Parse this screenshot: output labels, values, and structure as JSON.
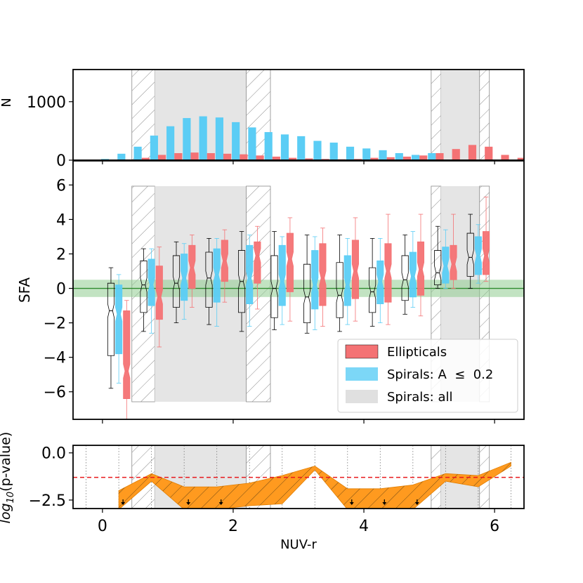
{
  "chart_data": [
    {
      "panel": "top",
      "type": "bar",
      "ylabel": "N",
      "ylim": [
        0,
        1550
      ],
      "yticks": [
        {
          "v": 0,
          "label": "0"
        },
        {
          "v": 1000,
          "label": "1000"
        }
      ],
      "bar_width": 0.12,
      "series": [
        {
          "name": "Spirals",
          "color": "#5bcdf5",
          "offset": -0.06,
          "x": [
            0.1,
            0.35,
            0.6,
            0.85,
            1.1,
            1.35,
            1.6,
            1.85,
            2.1,
            2.35,
            2.6,
            2.85,
            3.1,
            3.35,
            3.6,
            3.85,
            4.1,
            4.35,
            4.6,
            4.85,
            5.1
          ],
          "values": [
            20,
            110,
            230,
            420,
            580,
            720,
            750,
            730,
            650,
            560,
            480,
            440,
            410,
            330,
            300,
            230,
            200,
            170,
            120,
            90,
            120
          ]
        },
        {
          "name": "Ellipticals",
          "color": "#f47274",
          "offset": 0.06,
          "x": [
            0.35,
            0.6,
            0.85,
            1.1,
            1.35,
            1.6,
            1.85,
            2.1,
            2.35,
            2.6,
            2.85,
            3.1,
            3.35,
            3.6,
            3.85,
            4.1,
            4.35,
            4.6,
            4.85,
            5.1,
            5.35,
            5.6,
            5.85,
            6.1,
            6.35
          ],
          "values": [
            10,
            40,
            90,
            120,
            130,
            120,
            110,
            100,
            80,
            60,
            40,
            30,
            20,
            15,
            20,
            40,
            50,
            60,
            80,
            120,
            190,
            260,
            230,
            90,
            40
          ]
        }
      ]
    },
    {
      "panel": "middle",
      "type": "box",
      "ylabel": "SFA",
      "ylim": [
        -7.6,
        7.4
      ],
      "yticks": [
        {
          "v": 6,
          "label": "6"
        },
        {
          "v": 4,
          "label": "4"
        },
        {
          "v": 2,
          "label": "2"
        },
        {
          "v": 0,
          "label": "0"
        },
        {
          "v": -2,
          "label": "−2"
        },
        {
          "v": -4,
          "label": "−4"
        },
        {
          "v": -6,
          "label": "−6"
        }
      ],
      "zero_band": [
        -0.5,
        0.5
      ],
      "x": [
        0.25,
        0.75,
        1.25,
        1.75,
        2.25,
        2.75,
        3.25,
        3.75,
        4.25,
        4.75,
        5.25,
        5.75
      ],
      "series": [
        {
          "name": "Spirals: all",
          "color": "#ffffff",
          "stroke": "#000000",
          "offset": -0.12,
          "q1": [
            -3.9,
            -1.4,
            -1.1,
            -1.1,
            -1.4,
            -1.7,
            -2.0,
            -1.7,
            -1.4,
            -0.7,
            0.2,
            0.7
          ],
          "med": [
            -1.3,
            0.2,
            0.3,
            0.6,
            0.4,
            0.0,
            -0.5,
            -0.4,
            -0.2,
            0.5,
            0.9,
            1.8
          ],
          "q3": [
            0.3,
            1.6,
            1.9,
            2.1,
            2.2,
            1.9,
            1.4,
            1.5,
            1.2,
            1.9,
            2.2,
            3.2
          ],
          "lo": [
            -5.8,
            -2.5,
            -2.0,
            -2.1,
            -2.5,
            -2.4,
            -2.6,
            -2.5,
            -2.2,
            -1.5,
            0.0,
            0.0
          ],
          "hi": [
            1.2,
            2.3,
            2.7,
            2.9,
            3.3,
            3.3,
            3.1,
            3.1,
            2.9,
            3.1,
            3.6,
            4.3
          ]
        },
        {
          "name": "Spirals: A ≤ 0.2",
          "color": "#5bcdf5",
          "stroke": "#5bcdf5",
          "offset": 0.0,
          "q1": [
            -3.8,
            -1.0,
            -0.7,
            -0.8,
            -0.9,
            -1.0,
            -1.2,
            -1.0,
            -0.9,
            -0.5,
            0.3,
            0.8
          ],
          "med": [
            -1.5,
            0.2,
            0.6,
            0.8,
            0.6,
            0.4,
            0.2,
            0.2,
            0.4,
            0.7,
            1.3,
            1.9
          ],
          "q3": [
            0.2,
            1.7,
            2.0,
            2.3,
            2.5,
            2.5,
            2.2,
            1.9,
            1.6,
            2.1,
            2.4,
            3.0
          ],
          "lo": [
            -5.5,
            -2.6,
            -1.8,
            -2.2,
            -2.2,
            -2.1,
            -2.4,
            -2.1,
            -2.0,
            -1.1,
            0.0,
            0.3
          ],
          "hi": [
            0.8,
            2.3,
            2.6,
            2.9,
            3.1,
            3.0,
            3.0,
            2.9,
            2.9,
            3.3,
            3.4,
            3.7
          ]
        },
        {
          "name": "Ellipticals",
          "color": "#f47274",
          "stroke": "#f47274",
          "offset": 0.12,
          "q1": [
            -6.4,
            -1.8,
            0.0,
            0.4,
            0.3,
            -0.2,
            -1.0,
            -0.6,
            -0.8,
            -0.4,
            0.5,
            0.8
          ],
          "med": [
            -4.8,
            -0.5,
            1.2,
            1.6,
            1.9,
            1.7,
            0.6,
            1.0,
            1.0,
            1.1,
            1.4,
            1.9
          ],
          "q3": [
            -1.3,
            1.3,
            2.5,
            2.8,
            2.7,
            3.2,
            2.6,
            2.8,
            2.6,
            2.7,
            2.5,
            3.3
          ],
          "lo": [
            -7.6,
            -3.4,
            -1.1,
            -0.8,
            -1.2,
            -1.9,
            -2.2,
            -1.9,
            -2.1,
            -1.6,
            0.0,
            0.4
          ],
          "hi": [
            -0.7,
            2.4,
            3.1,
            3.4,
            3.6,
            4.1,
            3.5,
            4.1,
            4.3,
            4.3,
            4.3,
            5.3
          ]
        }
      ],
      "legend": [
        {
          "label": "Ellipticals",
          "color": "#f47274"
        },
        {
          "label": "Spirals: A  ≤  0.2",
          "color": "#5bcdf5"
        },
        {
          "label": "Spirals: all",
          "color": "#e0e0e0"
        }
      ]
    },
    {
      "panel": "bottom",
      "type": "area",
      "ylabel_prefix": "log",
      "ylabel_sub": "10",
      "ylabel_suffix": "(p-value)",
      "ylim": [
        -2.95,
        0.4
      ],
      "yticks": [
        {
          "v": 0,
          "label": "0.0"
        },
        {
          "v": -2.5,
          "label": "−2.5"
        }
      ],
      "significance": -1.3,
      "dotted_x": [
        -0.25,
        0.25,
        0.75,
        1.25,
        1.75,
        2.25,
        2.75,
        3.25,
        3.75,
        4.25,
        4.75,
        5.25,
        5.75,
        6.25
      ],
      "band_x": [
        0.25,
        0.75,
        1.25,
        1.75,
        2.25,
        2.75,
        3.25,
        3.75,
        4.25,
        4.75,
        5.25,
        5.75,
        6.25
      ],
      "band_upper": [
        -2.0,
        -1.1,
        -1.8,
        -1.8,
        -1.6,
        -1.2,
        -0.7,
        -1.9,
        -1.9,
        -1.7,
        -1.1,
        -1.2,
        -0.5
      ],
      "band_lower": [
        -3.0,
        -1.5,
        -3.0,
        -3.0,
        -2.8,
        -2.7,
        -0.9,
        -3.0,
        -3.0,
        -3.0,
        -1.5,
        -1.8,
        -0.7
      ],
      "arrows_x": [
        0.25,
        1.25,
        1.75,
        3.75,
        4.25,
        4.75
      ]
    }
  ],
  "x_axis": {
    "xlim": [
      -0.45,
      6.45
    ],
    "ticks": [
      {
        "v": 0,
        "label": "0"
      },
      {
        "v": 2,
        "label": "2"
      },
      {
        "v": 4,
        "label": "4"
      },
      {
        "v": 6,
        "label": "6"
      }
    ],
    "label": "NUV-r"
  },
  "shaded_regions": [
    {
      "x0": 0.45,
      "x1": 0.8,
      "style": "hatch"
    },
    {
      "x0": 0.8,
      "x1": 2.2,
      "style": "gray"
    },
    {
      "x0": 2.2,
      "x1": 2.57,
      "style": "hatch"
    },
    {
      "x0": 5.03,
      "x1": 5.18,
      "style": "hatch"
    },
    {
      "x0": 5.18,
      "x1": 5.77,
      "style": "gray"
    },
    {
      "x0": 5.77,
      "x1": 5.92,
      "style": "hatch"
    }
  ],
  "colors": {
    "green_band": "#8fcc8f",
    "zero_line": "#2e8b2e",
    "orange": "#ff9a1f",
    "red_dash": "#e8191c"
  }
}
